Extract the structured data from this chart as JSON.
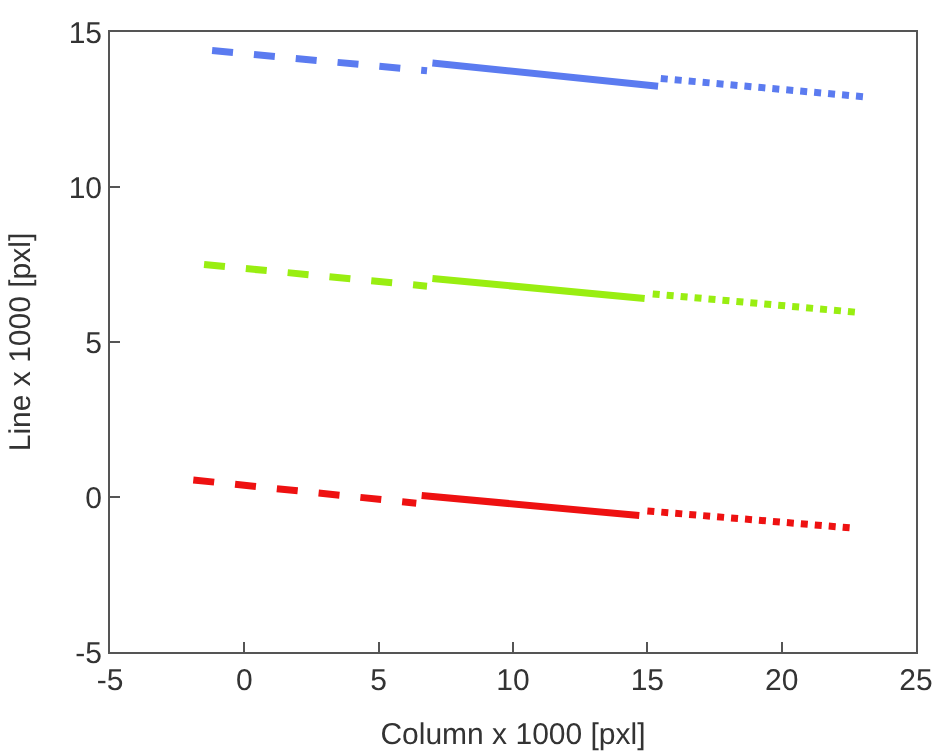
{
  "chart_data": {
    "type": "line",
    "xlabel": "Column x 1000 [pxl]",
    "ylabel": "Line x 1000 [pxl]",
    "xlim": [
      -5,
      25
    ],
    "xticks": [
      -5,
      0,
      5,
      10,
      15,
      20,
      25
    ],
    "ylim": [
      -5,
      15
    ],
    "yticks": [
      -5,
      0,
      5,
      10,
      15
    ],
    "grid": false,
    "marker": "none",
    "series": [
      {
        "color": "#5b7bf0",
        "line_style": "dashed",
        "x": [
          -1.2,
          6.8
        ],
        "values": [
          14.4,
          13.75
        ]
      },
      {
        "color": "#5b7bf0",
        "line_style": "solid",
        "x": [
          7.0,
          15.4
        ],
        "values": [
          14.0,
          13.25
        ]
      },
      {
        "color": "#5b7bf0",
        "line_style": "dotted",
        "x": [
          15.5,
          23.2
        ],
        "values": [
          13.5,
          12.9
        ]
      },
      {
        "color": "#99ee11",
        "line_style": "dashed",
        "x": [
          -1.5,
          6.8
        ],
        "values": [
          7.5,
          6.8
        ]
      },
      {
        "color": "#99ee11",
        "line_style": "solid",
        "x": [
          7.0,
          14.9
        ],
        "values": [
          7.05,
          6.4
        ]
      },
      {
        "color": "#99ee11",
        "line_style": "dotted",
        "x": [
          15.2,
          22.9
        ],
        "values": [
          6.55,
          5.95
        ]
      },
      {
        "color": "#ee1111",
        "line_style": "dashed",
        "x": [
          -1.9,
          6.4
        ],
        "values": [
          0.55,
          -0.2
        ]
      },
      {
        "color": "#ee1111",
        "line_style": "solid",
        "x": [
          6.6,
          14.7
        ],
        "values": [
          0.05,
          -0.6
        ]
      },
      {
        "color": "#ee1111",
        "line_style": "dotted",
        "x": [
          15.0,
          22.6
        ],
        "values": [
          -0.45,
          -1.0
        ]
      }
    ]
  }
}
